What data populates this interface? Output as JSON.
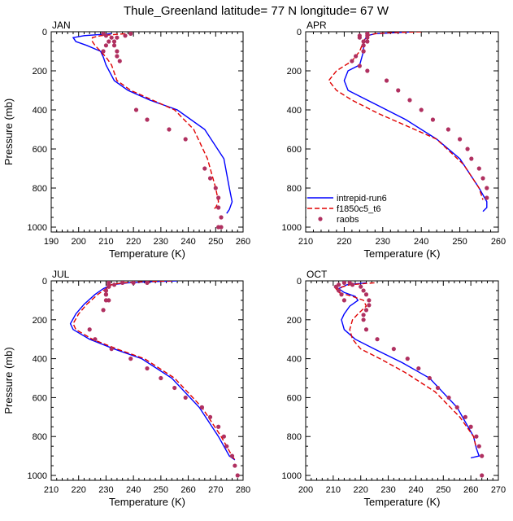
{
  "title": "Thule_Greenland  latitude= 77 N longitude= 67 W",
  "legend": {
    "entries": [
      {
        "name": "intrepid-run6",
        "color": "#0000ff",
        "style": "solid"
      },
      {
        "name": "f1850c5_t6",
        "color": "#e00000",
        "style": "dashed"
      },
      {
        "name": "raobs",
        "color": "#b03060",
        "style": "dots"
      }
    ]
  },
  "chart_data": [
    {
      "type": "line",
      "panel": "JAN",
      "xlabel": "Temperature (K)",
      "ylabel": "Pressure (mb)",
      "xlim": [
        190,
        260
      ],
      "ylim": [
        1025,
        0
      ],
      "xticks": [
        190,
        200,
        210,
        220,
        230,
        240,
        250,
        260
      ],
      "yticks": [
        0,
        200,
        400,
        600,
        800,
        1000
      ],
      "series": [
        {
          "name": "intrepid-run6",
          "x": [
            212,
            202,
            198,
            199,
            203,
            208,
            209,
            210,
            213,
            218,
            226,
            236,
            246,
            253,
            255,
            256,
            255,
            254
          ],
          "y": [
            10,
            20,
            30,
            50,
            70,
            100,
            130,
            170,
            250,
            300,
            350,
            400,
            500,
            650,
            800,
            870,
            910,
            930
          ]
        },
        {
          "name": "f1850c5_t6",
          "x": [
            217,
            208,
            205,
            205,
            206,
            208,
            210,
            212,
            214,
            219,
            227,
            235,
            242,
            247,
            250,
            251,
            250,
            249
          ],
          "y": [
            10,
            20,
            30,
            50,
            70,
            100,
            130,
            170,
            250,
            300,
            350,
            400,
            500,
            650,
            800,
            870,
            900,
            910
          ]
        },
        {
          "name": "raobs",
          "x": [
            219,
            217,
            214,
            211,
            210,
            209,
            209,
            210,
            212,
            213,
            213,
            214,
            214,
            215,
            221,
            225,
            233,
            239,
            246,
            248,
            250,
            251,
            251,
            252,
            251,
            252
          ],
          "y": [
            10,
            20,
            30,
            50,
            70,
            100,
            10,
            20,
            30,
            50,
            70,
            100,
            125,
            150,
            400,
            450,
            500,
            550,
            700,
            750,
            800,
            850,
            900,
            950,
            1000,
            1000
          ]
        }
      ]
    },
    {
      "type": "line",
      "panel": "APR",
      "xlabel": "Temperature (K)",
      "ylabel": "",
      "xlim": [
        210,
        260
      ],
      "ylim": [
        1025,
        0
      ],
      "xticks": [
        210,
        220,
        230,
        240,
        250,
        260
      ],
      "yticks": [
        0,
        200,
        400,
        600,
        800,
        1000
      ],
      "series": [
        {
          "name": "intrepid-run6",
          "x": [
            238,
            233,
            228,
            226,
            225,
            225,
            224,
            221,
            220,
            221,
            224,
            228,
            236,
            244,
            250,
            255,
            257,
            257,
            256
          ],
          "y": [
            0,
            5,
            10,
            20,
            50,
            100,
            170,
            200,
            250,
            300,
            330,
            370,
            450,
            550,
            650,
            800,
            870,
            900,
            920
          ]
        },
        {
          "name": "f1850c5_t6",
          "x": [
            240,
            232,
            228,
            226,
            225,
            224,
            222,
            218,
            216,
            218,
            222,
            229,
            236,
            244,
            251,
            255,
            256
          ],
          "y": [
            0,
            5,
            10,
            20,
            50,
            100,
            150,
            200,
            250,
            300,
            350,
            420,
            480,
            550,
            680,
            800,
            860
          ]
        },
        {
          "name": "raobs",
          "x": [
            226,
            224,
            224,
            225,
            225,
            225,
            226,
            226,
            226,
            226,
            225,
            225,
            223,
            222,
            224,
            226,
            231,
            234,
            237,
            240,
            243,
            247,
            250,
            252,
            253,
            255,
            256,
            257,
            257
          ],
          "y": [
            10,
            20,
            30,
            50,
            70,
            100,
            10,
            20,
            30,
            50,
            70,
            100,
            125,
            150,
            175,
            200,
            250,
            300,
            350,
            400,
            450,
            500,
            550,
            600,
            650,
            700,
            750,
            800,
            850
          ]
        }
      ]
    },
    {
      "type": "line",
      "panel": "JUL",
      "xlabel": "Temperature (K)",
      "ylabel": "Pressure (mb)",
      "xlim": [
        210,
        280
      ],
      "ylim": [
        1025,
        0
      ],
      "xticks": [
        210,
        220,
        230,
        240,
        250,
        260,
        270,
        280
      ],
      "yticks": [
        0,
        200,
        400,
        600,
        800,
        1000
      ],
      "series": [
        {
          "name": "intrepid-run6",
          "x": [
            256,
            245,
            238,
            232,
            229,
            226,
            222,
            219,
            217,
            218,
            224,
            233,
            243,
            254,
            264,
            271,
            275,
            277
          ],
          "y": [
            0,
            5,
            10,
            20,
            40,
            70,
            120,
            170,
            220,
            250,
            300,
            350,
            400,
            500,
            650,
            800,
            900,
            920
          ]
        },
        {
          "name": "f1850c5_t6",
          "x": [
            254,
            243,
            236,
            232,
            230,
            227,
            223,
            220,
            218,
            219,
            225,
            234,
            244,
            255,
            265,
            272,
            276,
            277
          ],
          "y": [
            0,
            5,
            10,
            20,
            40,
            70,
            120,
            170,
            220,
            250,
            300,
            350,
            400,
            500,
            650,
            800,
            900,
            920
          ]
        },
        {
          "name": "raobs",
          "x": [
            245,
            240,
            236,
            233,
            231,
            230,
            230,
            231,
            231,
            231,
            231,
            230,
            230,
            230,
            229,
            224,
            226,
            232,
            239,
            245,
            250,
            255,
            259,
            265,
            268,
            271,
            273,
            274,
            276,
            277,
            278
          ],
          "y": [
            10,
            10,
            10,
            20,
            30,
            50,
            70,
            100,
            10,
            20,
            30,
            50,
            70,
            100,
            150,
            250,
            300,
            350,
            400,
            450,
            500,
            550,
            600,
            650,
            700,
            750,
            800,
            850,
            900,
            950,
            1000
          ]
        }
      ]
    },
    {
      "type": "line",
      "panel": "OCT",
      "xlabel": "Temperature (K)",
      "ylabel": "",
      "xlim": [
        200,
        270
      ],
      "ylim": [
        1025,
        0
      ],
      "xticks": [
        200,
        210,
        220,
        230,
        240,
        250,
        260,
        270
      ],
      "yticks": [
        0,
        200,
        400,
        600,
        800,
        1000
      ],
      "series": [
        {
          "name": "intrepid-run6",
          "x": [
            222,
            215,
            212,
            214,
            218,
            219,
            216,
            214,
            213,
            214,
            218,
            225,
            235,
            245,
            255,
            261,
            262,
            263,
            260
          ],
          "y": [
            10,
            20,
            40,
            60,
            80,
            100,
            130,
            170,
            200,
            250,
            300,
            350,
            420,
            500,
            650,
            800,
            860,
            900,
            910
          ]
        },
        {
          "name": "f1850c5_t6",
          "x": [
            225,
            216,
            211,
            212,
            217,
            221,
            222,
            219,
            217,
            216,
            217,
            220,
            227,
            236,
            247,
            256,
            261,
            262
          ],
          "y": [
            10,
            20,
            40,
            60,
            80,
            100,
            130,
            170,
            200,
            250,
            300,
            350,
            400,
            470,
            570,
            700,
            800,
            860
          ]
        },
        {
          "name": "raobs",
          "x": [
            214,
            212,
            211,
            212,
            213,
            214,
            216,
            217,
            220,
            221,
            222,
            223,
            223,
            222,
            221,
            221,
            222,
            226,
            232,
            237,
            241,
            245,
            248,
            252,
            255,
            258,
            260,
            262,
            263,
            264,
            264
          ],
          "y": [
            10,
            20,
            30,
            50,
            70,
            100,
            10,
            20,
            30,
            50,
            70,
            100,
            125,
            150,
            175,
            200,
            250,
            300,
            350,
            400,
            450,
            500,
            550,
            600,
            650,
            700,
            750,
            800,
            850,
            900,
            1000
          ]
        }
      ]
    }
  ]
}
